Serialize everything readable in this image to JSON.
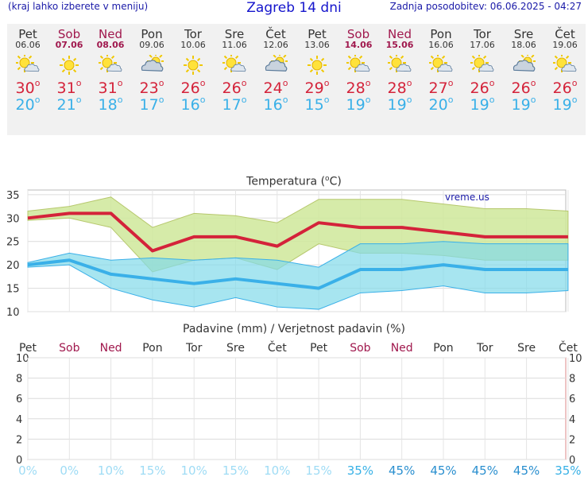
{
  "header": {
    "left_note": "(kraj lahko izberete v meniju)",
    "title": "Zagreb 14 dni",
    "updated": "Zadnja posodobitev: 06.06.2025 - 04:27"
  },
  "days": [
    {
      "name": "Pet",
      "date": "06.06",
      "weekend": false,
      "icon": "sun-cloud-icon",
      "high": "30",
      "low": "20"
    },
    {
      "name": "Sob",
      "date": "07.06",
      "weekend": true,
      "icon": "sun-icon",
      "high": "31",
      "low": "21"
    },
    {
      "name": "Ned",
      "date": "08.06",
      "weekend": true,
      "icon": "sun-cloud-icon",
      "high": "31",
      "low": "18"
    },
    {
      "name": "Pon",
      "date": "09.06",
      "weekend": false,
      "icon": "cloud-sun-icon",
      "high": "23",
      "low": "17"
    },
    {
      "name": "Tor",
      "date": "10.06",
      "weekend": false,
      "icon": "sun-icon",
      "high": "26",
      "low": "16"
    },
    {
      "name": "Sre",
      "date": "11.06",
      "weekend": false,
      "icon": "sun-cloud-icon",
      "high": "26",
      "low": "17"
    },
    {
      "name": "Čet",
      "date": "12.06",
      "weekend": false,
      "icon": "cloud-sun-icon",
      "high": "24",
      "low": "16"
    },
    {
      "name": "Pet",
      "date": "13.06",
      "weekend": false,
      "icon": "sun-icon",
      "high": "29",
      "low": "15"
    },
    {
      "name": "Sob",
      "date": "14.06",
      "weekend": true,
      "icon": "sun-cloud-icon",
      "high": "28",
      "low": "19"
    },
    {
      "name": "Ned",
      "date": "15.06",
      "weekend": true,
      "icon": "sun-cloud-icon",
      "high": "28",
      "low": "19"
    },
    {
      "name": "Pon",
      "date": "16.06",
      "weekend": false,
      "icon": "sun-cloud-icon",
      "high": "27",
      "low": "20"
    },
    {
      "name": "Tor",
      "date": "17.06",
      "weekend": false,
      "icon": "sun-cloud-icon",
      "high": "26",
      "low": "19"
    },
    {
      "name": "Sre",
      "date": "18.06",
      "weekend": false,
      "icon": "cloud-sun-icon",
      "high": "26",
      "low": "19"
    },
    {
      "name": "Čet",
      "date": "19.06",
      "weekend": false,
      "icon": "sun-cloud-icon",
      "high": "26",
      "low": "19"
    }
  ],
  "colors": {
    "high": "#d4233a",
    "low": "#3ab0e8",
    "weekend": "#a0184d",
    "band_high": "#cfe89a",
    "band_low": "#82daea",
    "overlap": "#8fd07a"
  },
  "chart_data": [
    {
      "type": "line",
      "title": "Temperatura (°C)",
      "watermark": "vreme.us",
      "categories": [
        "06.06",
        "07.06",
        "08.06",
        "09.06",
        "10.06",
        "11.06",
        "12.06",
        "13.06",
        "14.06",
        "15.06",
        "16.06",
        "17.06",
        "18.06",
        "19.06"
      ],
      "ylim": [
        10,
        36
      ],
      "yticks": [
        "10",
        "15",
        "20",
        "25",
        "30",
        "35"
      ],
      "series": [
        {
          "values": [
            30,
            31,
            31,
            23,
            26,
            26,
            24,
            29,
            28,
            28,
            27,
            26,
            26,
            26
          ],
          "band_min": [
            29.5,
            30,
            28,
            18.5,
            21,
            21.5,
            19,
            24.5,
            22.5,
            22.5,
            22,
            21,
            21,
            21
          ],
          "band_max": [
            31.5,
            32.5,
            34.5,
            28,
            31,
            30.5,
            29,
            34,
            34,
            34,
            33,
            32,
            32,
            31.5
          ]
        },
        {
          "values": [
            20,
            21,
            18,
            17,
            16,
            17,
            16,
            15,
            19,
            19,
            20,
            19,
            19,
            19
          ],
          "band_min": [
            19.5,
            20,
            15,
            12.5,
            11,
            13,
            11,
            10.5,
            14,
            14.5,
            15.5,
            14,
            14,
            14.5
          ],
          "band_max": [
            20.5,
            22.5,
            21,
            21.5,
            21,
            21.5,
            21,
            19.5,
            24.5,
            24.5,
            25,
            24.5,
            24.5,
            24.5
          ]
        }
      ],
      "grid": true
    },
    {
      "type": "bar",
      "title": "Padavine (mm) / Verjetnost padavin (%)",
      "categories": [
        "Pet",
        "Sob",
        "Ned",
        "Pon",
        "Tor",
        "Sre",
        "Čet",
        "Pet",
        "Sob",
        "Ned",
        "Pon",
        "Tor",
        "Sre",
        "Čet"
      ],
      "weekend": [
        false,
        true,
        true,
        false,
        false,
        false,
        false,
        false,
        true,
        true,
        false,
        false,
        false,
        false
      ],
      "ylim": [
        0,
        10
      ],
      "yticks": [
        "0",
        "2",
        "4",
        "6",
        "8",
        "10"
      ],
      "precip_mm": [
        0,
        0,
        0,
        0,
        0,
        0,
        0,
        0,
        0,
        0,
        0,
        0,
        0,
        0
      ],
      "probability": [
        "0%",
        "0%",
        "10%",
        "15%",
        "10%",
        "15%",
        "10%",
        "15%",
        "35%",
        "45%",
        "45%",
        "45%",
        "45%",
        "35%"
      ],
      "grid": true
    }
  ]
}
